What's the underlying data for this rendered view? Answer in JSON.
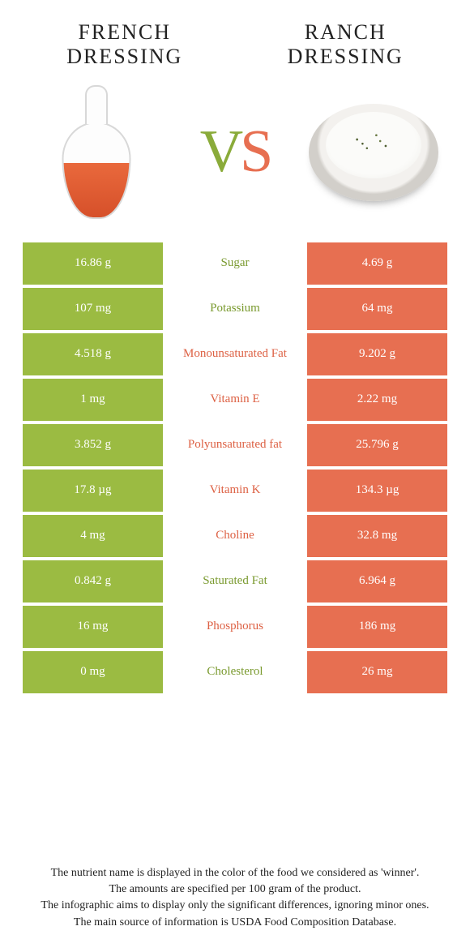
{
  "colors": {
    "french": "#9bbb42",
    "ranch": "#e76f51",
    "vs_v": "#8aab3a",
    "vs_s": "#e76f51",
    "label_french": "#7a9a2f",
    "label_ranch": "#dd6144",
    "row_text": "#ffffff",
    "background": "#ffffff"
  },
  "header": {
    "left": "FRENCH DRESSING",
    "right": "RANCH DRESSING"
  },
  "vs": {
    "v": "V",
    "s": "S"
  },
  "rows": [
    {
      "label": "Sugar",
      "winner": "french",
      "french": "16.86 g",
      "ranch": "4.69 g"
    },
    {
      "label": "Potassium",
      "winner": "french",
      "french": "107 mg",
      "ranch": "64 mg"
    },
    {
      "label": "Monounsaturated Fat",
      "winner": "ranch",
      "french": "4.518 g",
      "ranch": "9.202 g"
    },
    {
      "label": "Vitamin E",
      "winner": "ranch",
      "french": "1 mg",
      "ranch": "2.22 mg"
    },
    {
      "label": "Polyunsaturated fat",
      "winner": "ranch",
      "french": "3.852 g",
      "ranch": "25.796 g"
    },
    {
      "label": "Vitamin K",
      "winner": "ranch",
      "french": "17.8 µg",
      "ranch": "134.3 µg"
    },
    {
      "label": "Choline",
      "winner": "ranch",
      "french": "4 mg",
      "ranch": "32.8 mg"
    },
    {
      "label": "Saturated Fat",
      "winner": "french",
      "french": "0.842 g",
      "ranch": "6.964 g"
    },
    {
      "label": "Phosphorus",
      "winner": "ranch",
      "french": "16 mg",
      "ranch": "186 mg"
    },
    {
      "label": "Cholesterol",
      "winner": "french",
      "french": "0 mg",
      "ranch": "26 mg"
    }
  ],
  "footnotes": [
    "The nutrient name is displayed in the color of the food we considered as 'winner'.",
    "The amounts are specified per 100 gram of the product.",
    "The infographic aims to display only the significant differences, ignoring minor ones.",
    "The main source of information is USDA Food Composition Database."
  ]
}
